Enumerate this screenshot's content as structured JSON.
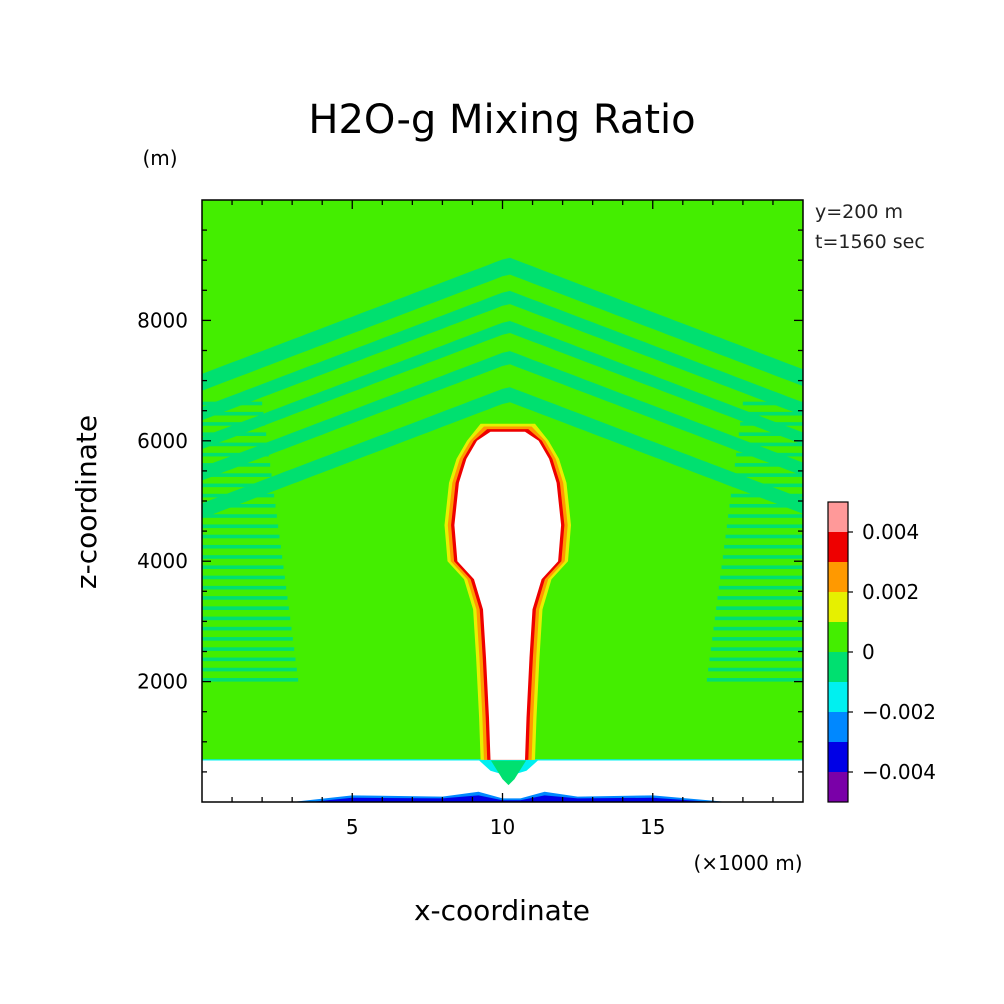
{
  "chart_data": {
    "type": "heatmap",
    "title": "H2O-g Mixing Ratio",
    "xlabel": "x-coordinate",
    "ylabel": "z-coordinate",
    "x_unit_label": "(×1000 m)",
    "y_unit_label": "(m)",
    "annotations": [
      "y=200 m",
      "t=1560 sec"
    ],
    "xlim": [
      0,
      20
    ],
    "ylim": [
      0,
      10000
    ],
    "x_ticks": [
      5,
      10,
      15
    ],
    "y_ticks": [
      2000,
      4000,
      6000,
      8000
    ],
    "x_tick_labels": [
      "5",
      "10",
      "15"
    ],
    "y_tick_labels": [
      "2000",
      "4000",
      "6000",
      "8000"
    ],
    "colorbar": {
      "levels": [
        -0.005,
        -0.004,
        -0.003,
        -0.002,
        -0.001,
        0,
        0.001,
        0.002,
        0.003,
        0.004,
        0.005
      ],
      "colors": [
        "#7a00a8",
        "#0000e6",
        "#0088ff",
        "#00f0f0",
        "#00e070",
        "#44ee00",
        "#e6f000",
        "#ff9900",
        "#ee0000",
        "#ff9999"
      ],
      "tick_values": [
        -0.004,
        -0.002,
        0,
        0.002,
        0.004
      ],
      "tick_labels": [
        "-0.004",
        "-0.002",
        "0",
        "0.002",
        "0.004"
      ],
      "tick_display": [
        "−0.004",
        "−0.002",
        "0",
        "0.002",
        "0.004"
      ]
    },
    "field_description": {
      "background": "0 to 0.001",
      "stripes": "-0.001 to 0",
      "plume_core": "above 0.005 (white)",
      "surface_layer": "white, 0 to 700 m"
    },
    "plume": {
      "center_x": 10.2,
      "top_z": 6300,
      "anvil_top_z": 9050,
      "base_z": 700
    }
  },
  "colors": {
    "background": "#44ee00",
    "stripe": "#00e070",
    "frame": "#000000"
  }
}
